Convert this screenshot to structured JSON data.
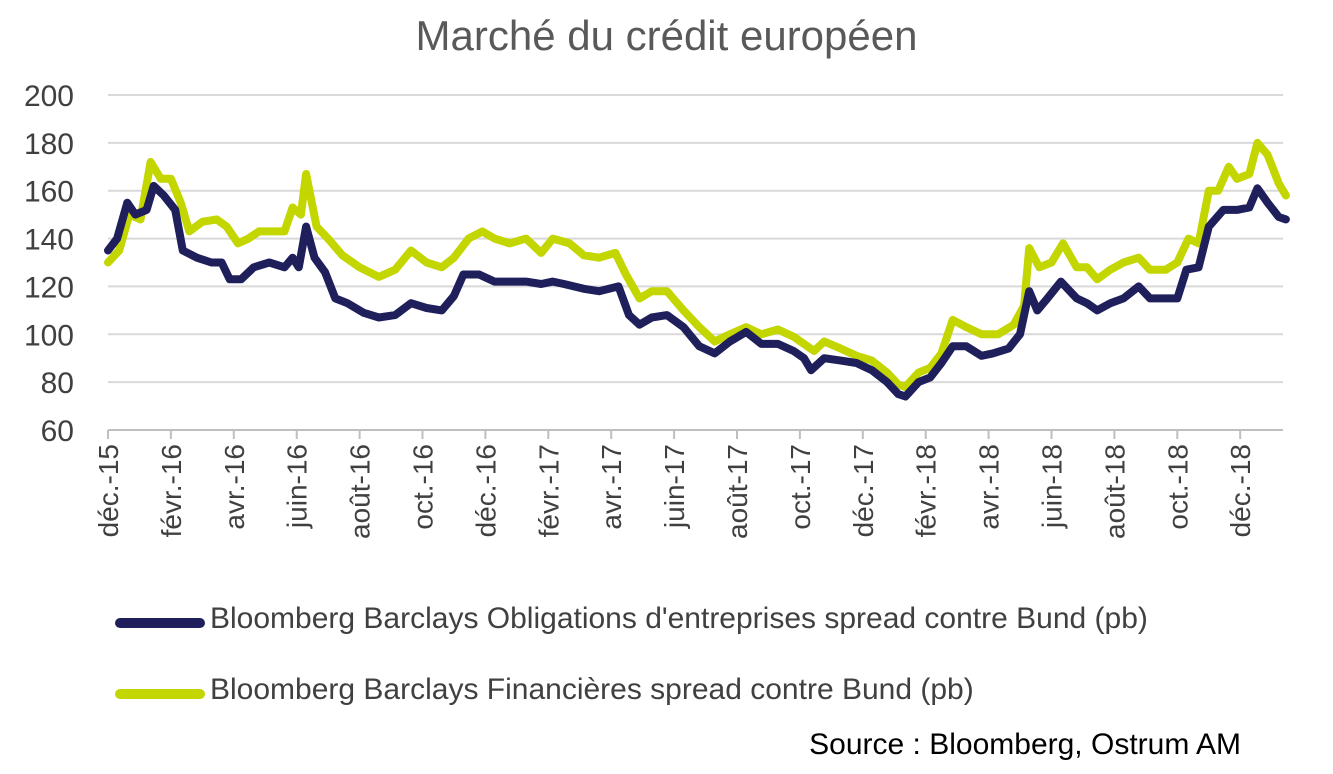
{
  "chart_data": {
    "type": "line",
    "title": "Marché du crédit européen",
    "ylim": [
      60,
      200
    ],
    "yticks": [
      60,
      80,
      100,
      120,
      140,
      160,
      180,
      200
    ],
    "grid": true,
    "legend_position": "bottom",
    "xticks": [
      "déc.-15",
      "févr.-16",
      "avr.-16",
      "juin-16",
      "août-16",
      "oct.-16",
      "déc.-16",
      "févr.-17",
      "avr.-17",
      "juin-17",
      "août-17",
      "oct.-17",
      "déc.-17",
      "févr.-18",
      "avr.-18",
      "juin-18",
      "août-18",
      "oct.-18",
      "déc.-18"
    ],
    "series": [
      {
        "name": "Bloomberg Barclays Obligations d'entreprises spread contre Bund (pb)",
        "color": "#1f1f5c",
        "points": [
          [
            "2015-12-01",
            135
          ],
          [
            "2015-12-10",
            140
          ],
          [
            "2015-12-20",
            155
          ],
          [
            "2015-12-28",
            150
          ],
          [
            "2016-01-08",
            152
          ],
          [
            "2016-01-15",
            162
          ],
          [
            "2016-01-25",
            158
          ],
          [
            "2016-02-05",
            152
          ],
          [
            "2016-02-12",
            135
          ],
          [
            "2016-02-25",
            132
          ],
          [
            "2016-03-10",
            130
          ],
          [
            "2016-03-20",
            130
          ],
          [
            "2016-03-28",
            123
          ],
          [
            "2016-04-08",
            123
          ],
          [
            "2016-04-20",
            128
          ],
          [
            "2016-05-05",
            130
          ],
          [
            "2016-05-20",
            128
          ],
          [
            "2016-05-28",
            132
          ],
          [
            "2016-06-03",
            128
          ],
          [
            "2016-06-10",
            145
          ],
          [
            "2016-06-18",
            132
          ],
          [
            "2016-06-28",
            126
          ],
          [
            "2016-07-08",
            115
          ],
          [
            "2016-07-20",
            113
          ],
          [
            "2016-08-05",
            109
          ],
          [
            "2016-08-20",
            107
          ],
          [
            "2016-09-05",
            108
          ],
          [
            "2016-09-20",
            113
          ],
          [
            "2016-10-05",
            111
          ],
          [
            "2016-10-20",
            110
          ],
          [
            "2016-11-01",
            116
          ],
          [
            "2016-11-10",
            125
          ],
          [
            "2016-11-25",
            125
          ],
          [
            "2016-12-10",
            122
          ],
          [
            "2016-12-25",
            122
          ],
          [
            "2017-01-10",
            122
          ],
          [
            "2017-01-25",
            121
          ],
          [
            "2017-02-05",
            122
          ],
          [
            "2017-02-15",
            121
          ],
          [
            "2017-03-05",
            119
          ],
          [
            "2017-03-20",
            118
          ],
          [
            "2017-04-08",
            120
          ],
          [
            "2017-04-18",
            108
          ],
          [
            "2017-04-28",
            104
          ],
          [
            "2017-05-10",
            107
          ],
          [
            "2017-05-25",
            108
          ],
          [
            "2017-06-10",
            103
          ],
          [
            "2017-06-25",
            95
          ],
          [
            "2017-07-10",
            92
          ],
          [
            "2017-07-25",
            97
          ],
          [
            "2017-08-10",
            101
          ],
          [
            "2017-08-25",
            96
          ],
          [
            "2017-09-10",
            96
          ],
          [
            "2017-09-25",
            93
          ],
          [
            "2017-10-05",
            90
          ],
          [
            "2017-10-12",
            85
          ],
          [
            "2017-10-25",
            90
          ],
          [
            "2017-11-10",
            89
          ],
          [
            "2017-11-25",
            88
          ],
          [
            "2017-12-10",
            85
          ],
          [
            "2017-12-25",
            80
          ],
          [
            "2018-01-05",
            75
          ],
          [
            "2018-01-12",
            74
          ],
          [
            "2018-01-25",
            80
          ],
          [
            "2018-02-05",
            82
          ],
          [
            "2018-02-15",
            88
          ],
          [
            "2018-02-25",
            95
          ],
          [
            "2018-03-10",
            95
          ],
          [
            "2018-03-25",
            91
          ],
          [
            "2018-04-05",
            92
          ],
          [
            "2018-04-20",
            94
          ],
          [
            "2018-05-01",
            100
          ],
          [
            "2018-05-10",
            118
          ],
          [
            "2018-05-18",
            110
          ],
          [
            "2018-05-28",
            115
          ],
          [
            "2018-06-10",
            122
          ],
          [
            "2018-06-25",
            115
          ],
          [
            "2018-07-05",
            113
          ],
          [
            "2018-07-15",
            110
          ],
          [
            "2018-07-28",
            113
          ],
          [
            "2018-08-10",
            115
          ],
          [
            "2018-08-25",
            120
          ],
          [
            "2018-09-05",
            115
          ],
          [
            "2018-09-20",
            115
          ],
          [
            "2018-10-01",
            115
          ],
          [
            "2018-10-10",
            127
          ],
          [
            "2018-10-22",
            128
          ],
          [
            "2018-11-01",
            145
          ],
          [
            "2018-11-15",
            152
          ],
          [
            "2018-11-28",
            152
          ],
          [
            "2018-12-10",
            153
          ],
          [
            "2018-12-18",
            161
          ],
          [
            "2018-12-28",
            155
          ],
          [
            "2019-01-08",
            149
          ],
          [
            "2019-01-15",
            148
          ]
        ]
      },
      {
        "name": "Bloomberg Barclays Financières spread contre Bund (pb)",
        "color": "#c3d600",
        "points": [
          [
            "2015-12-01",
            130
          ],
          [
            "2015-12-12",
            135
          ],
          [
            "2015-12-22",
            150
          ],
          [
            "2016-01-02",
            148
          ],
          [
            "2016-01-12",
            172
          ],
          [
            "2016-01-22",
            165
          ],
          [
            "2016-02-01",
            165
          ],
          [
            "2016-02-10",
            155
          ],
          [
            "2016-02-18",
            143
          ],
          [
            "2016-03-01",
            147
          ],
          [
            "2016-03-15",
            148
          ],
          [
            "2016-03-25",
            145
          ],
          [
            "2016-04-05",
            138
          ],
          [
            "2016-04-15",
            140
          ],
          [
            "2016-04-25",
            143
          ],
          [
            "2016-05-10",
            143
          ],
          [
            "2016-05-20",
            143
          ],
          [
            "2016-05-28",
            153
          ],
          [
            "2016-06-05",
            150
          ],
          [
            "2016-06-10",
            167
          ],
          [
            "2016-06-20",
            145
          ],
          [
            "2016-07-01",
            140
          ],
          [
            "2016-07-15",
            133
          ],
          [
            "2016-08-01",
            128
          ],
          [
            "2016-08-20",
            124
          ],
          [
            "2016-09-05",
            127
          ],
          [
            "2016-09-20",
            135
          ],
          [
            "2016-10-05",
            130
          ],
          [
            "2016-10-20",
            128
          ],
          [
            "2016-11-01",
            132
          ],
          [
            "2016-11-15",
            140
          ],
          [
            "2016-11-28",
            143
          ],
          [
            "2016-12-10",
            140
          ],
          [
            "2016-12-25",
            138
          ],
          [
            "2017-01-10",
            140
          ],
          [
            "2017-01-25",
            134
          ],
          [
            "2017-02-05",
            140
          ],
          [
            "2017-02-20",
            138
          ],
          [
            "2017-03-05",
            133
          ],
          [
            "2017-03-20",
            132
          ],
          [
            "2017-04-05",
            134
          ],
          [
            "2017-04-15",
            125
          ],
          [
            "2017-04-28",
            115
          ],
          [
            "2017-05-10",
            118
          ],
          [
            "2017-05-25",
            118
          ],
          [
            "2017-06-10",
            110
          ],
          [
            "2017-06-25",
            103
          ],
          [
            "2017-07-10",
            97
          ],
          [
            "2017-07-25",
            100
          ],
          [
            "2017-08-10",
            103
          ],
          [
            "2017-08-25",
            100
          ],
          [
            "2017-09-10",
            102
          ],
          [
            "2017-09-25",
            99
          ],
          [
            "2017-10-05",
            96
          ],
          [
            "2017-10-15",
            93
          ],
          [
            "2017-10-25",
            97
          ],
          [
            "2017-11-10",
            94
          ],
          [
            "2017-11-25",
            91
          ],
          [
            "2017-12-10",
            89
          ],
          [
            "2017-12-25",
            84
          ],
          [
            "2018-01-05",
            79
          ],
          [
            "2018-01-12",
            78
          ],
          [
            "2018-01-25",
            84
          ],
          [
            "2018-02-05",
            86
          ],
          [
            "2018-02-15",
            92
          ],
          [
            "2018-02-25",
            106
          ],
          [
            "2018-03-10",
            103
          ],
          [
            "2018-03-25",
            100
          ],
          [
            "2018-04-10",
            100
          ],
          [
            "2018-04-25",
            104
          ],
          [
            "2018-05-05",
            112
          ],
          [
            "2018-05-10",
            136
          ],
          [
            "2018-05-20",
            128
          ],
          [
            "2018-06-01",
            130
          ],
          [
            "2018-06-12",
            138
          ],
          [
            "2018-06-25",
            128
          ],
          [
            "2018-07-05",
            128
          ],
          [
            "2018-07-15",
            123
          ],
          [
            "2018-07-28",
            127
          ],
          [
            "2018-08-10",
            130
          ],
          [
            "2018-08-25",
            132
          ],
          [
            "2018-09-05",
            127
          ],
          [
            "2018-09-20",
            127
          ],
          [
            "2018-10-01",
            130
          ],
          [
            "2018-10-12",
            140
          ],
          [
            "2018-10-22",
            138
          ],
          [
            "2018-11-01",
            160
          ],
          [
            "2018-11-10",
            160
          ],
          [
            "2018-11-20",
            170
          ],
          [
            "2018-11-28",
            165
          ],
          [
            "2018-12-10",
            167
          ],
          [
            "2018-12-18",
            180
          ],
          [
            "2018-12-28",
            175
          ],
          [
            "2019-01-08",
            163
          ],
          [
            "2019-01-15",
            158
          ]
        ]
      }
    ]
  },
  "source": "Source : Bloomberg, Ostrum AM"
}
